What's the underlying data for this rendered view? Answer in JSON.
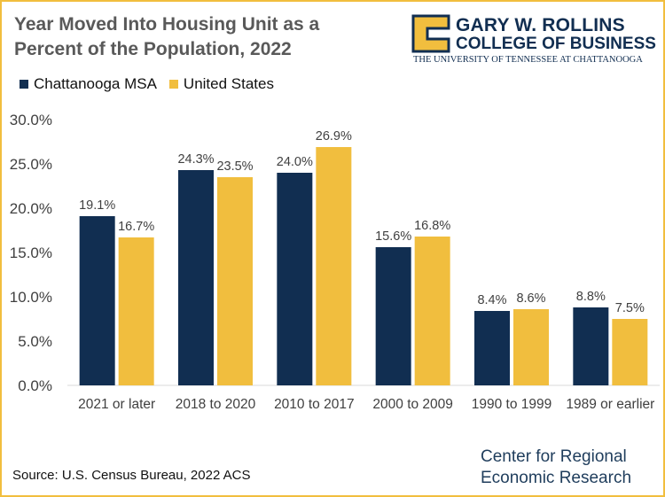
{
  "chart_data": {
    "type": "bar",
    "title": "Year Moved Into Housing Unit as a Percent of the Population, 2022",
    "categories": [
      "2021 or later",
      "2018 to 2020",
      "2010 to 2017",
      "2000 to 2009",
      "1990 to 1999",
      "1989 or earlier"
    ],
    "series": [
      {
        "name": "Chattanooga MSA",
        "color": "#112e51",
        "values": [
          19.1,
          24.3,
          24.0,
          15.6,
          8.4,
          8.8
        ]
      },
      {
        "name": "United States",
        "color": "#f1be3e",
        "values": [
          16.7,
          23.5,
          26.9,
          16.8,
          8.6,
          7.5
        ]
      }
    ],
    "ylim": [
      0,
      30
    ],
    "yticks": [
      0,
      5,
      10,
      15,
      20,
      25,
      30
    ],
    "ytick_format": "percent_1dp",
    "data_labels": true,
    "legend_position": "top-left",
    "grid": false,
    "xlabel": "",
    "ylabel": ""
  },
  "branding": {
    "logo_name": "GARY W. ROLLINS",
    "logo_college": "COLLEGE OF BUSINESS",
    "logo_university": "THE UNIVERSITY OF TENNESSEE AT CHATTANOOGA"
  },
  "footer": {
    "source": "Source: U.S. Census Bureau, 2022 ACS",
    "center_line1": "Center for Regional",
    "center_line2": "Economic Research"
  }
}
